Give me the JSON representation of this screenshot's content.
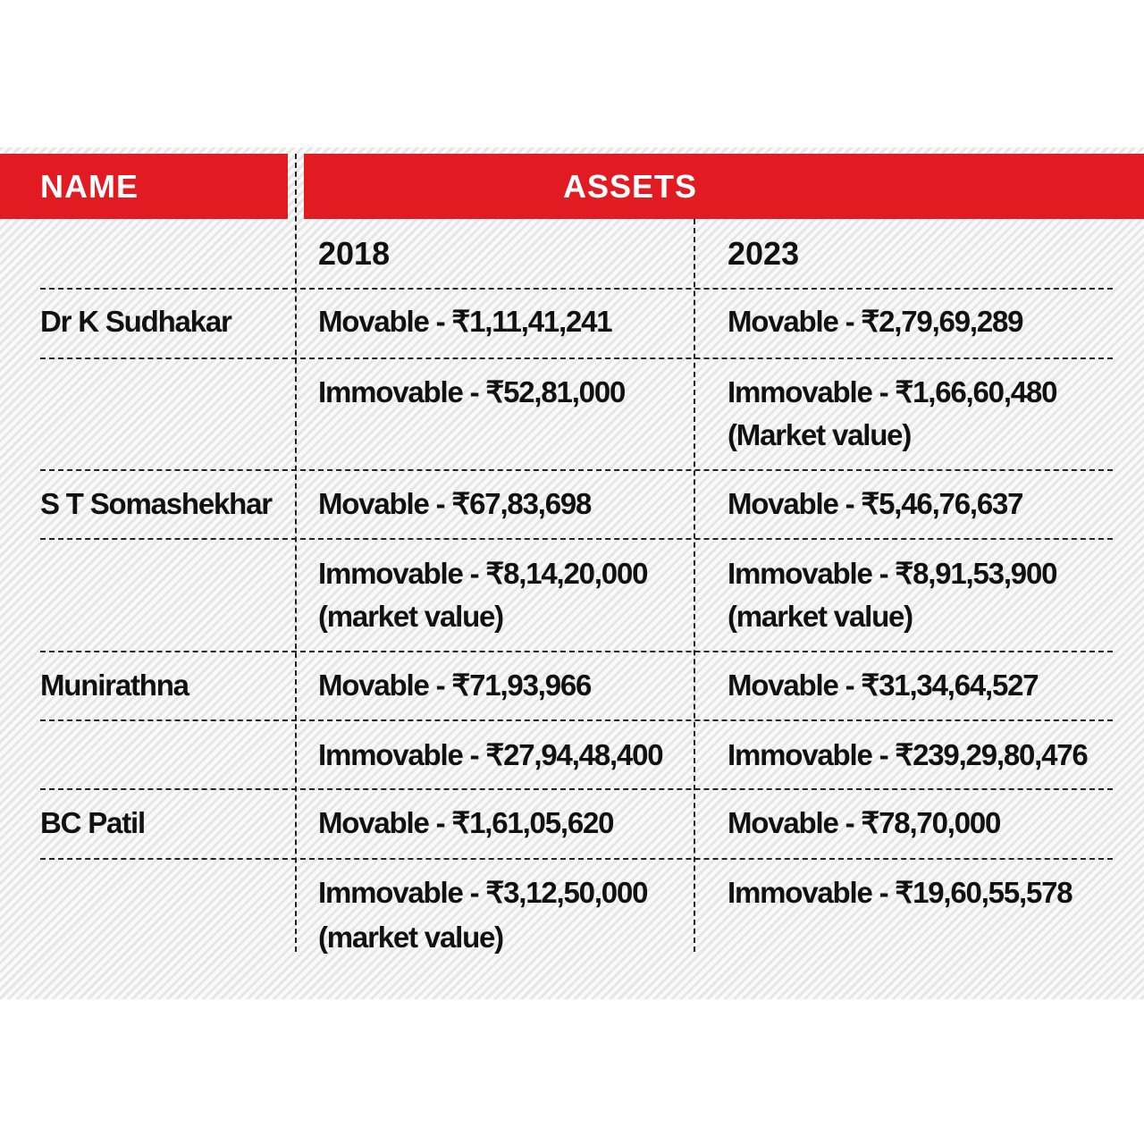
{
  "header": {
    "name": "NAME",
    "assets": "ASSETS"
  },
  "years": [
    "2018",
    "2023"
  ],
  "rows": [
    {
      "name": "Dr K Sudhakar",
      "y2018": "Movable - ₹1,11,41,241",
      "y2023": "Movable - ₹2,79,69,289"
    },
    {
      "name": "",
      "y2018": "Immovable - ₹52,81,000",
      "y2023": "Immovable - ₹1,66,60,480",
      "y2023_note": "(Market value)"
    },
    {
      "name": "S T Somashekhar",
      "y2018": "Movable - ₹67,83,698",
      "y2023": "Movable - ₹5,46,76,637"
    },
    {
      "name": "",
      "y2018": "Immovable - ₹8,14,20,000",
      "y2018_note": "(market value)",
      "y2023": "Immovable - ₹8,91,53,900",
      "y2023_note": "(market value)"
    },
    {
      "name": "Munirathna",
      "y2018": "Movable - ₹71,93,966",
      "y2023": "Movable - ₹31,34,64,527"
    },
    {
      "name": "",
      "y2018": "Immovable - ₹27,94,48,400",
      "y2023": "Immovable - ₹239,29,80,476"
    },
    {
      "name": "BC Patil",
      "y2018": "Movable - ₹1,61,05,620",
      "y2023": "Movable - ₹78,70,000"
    },
    {
      "name": "",
      "y2018": "Immovable - ₹3,12,50,000",
      "y2018_note": "(market value)",
      "y2023": "Immovable - ₹19,60,55,578"
    }
  ]
}
